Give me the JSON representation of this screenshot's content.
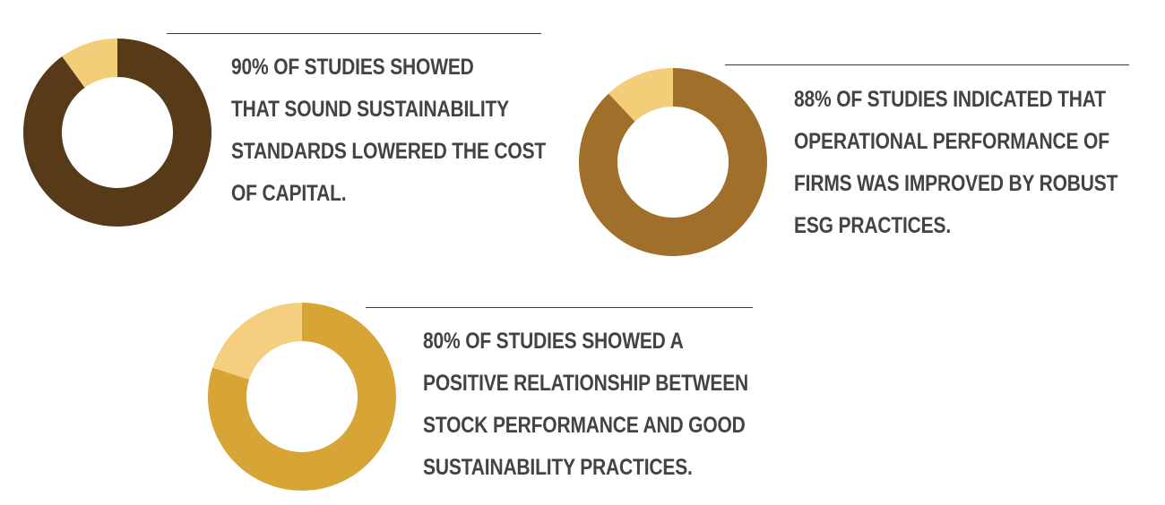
{
  "chart_data": [
    {
      "type": "pie",
      "values": [
        90,
        10
      ],
      "colors": [
        "#573a18",
        "#f3cd78"
      ],
      "text_lines": [
        "90% OF STUDIES SHOWED",
        "THAT SOUND SUSTAINABILITY",
        "STANDARDS LOWERED THE COST",
        "OF CAPITAL."
      ]
    },
    {
      "type": "pie",
      "values": [
        88,
        12
      ],
      "colors": [
        "#a0702a",
        "#f3cd78"
      ],
      "text_lines": [
        "88% OF STUDIES INDICATED THAT",
        "OPERATIONAL PERFORMANCE OF",
        "FIRMS WAS IMPROVED BY ROBUST",
        "ESG PRACTICES."
      ]
    },
    {
      "type": "pie",
      "values": [
        80,
        20
      ],
      "colors": [
        "#d7a535",
        "#f5cf7f"
      ],
      "text_lines": [
        "80% OF STUDIES SHOWED A",
        "POSITIVE RELATIONSHIP BETWEEN",
        "STOCK PERFORMANCE AND GOOD",
        "SUSTAINABILITY PRACTICES."
      ]
    }
  ]
}
